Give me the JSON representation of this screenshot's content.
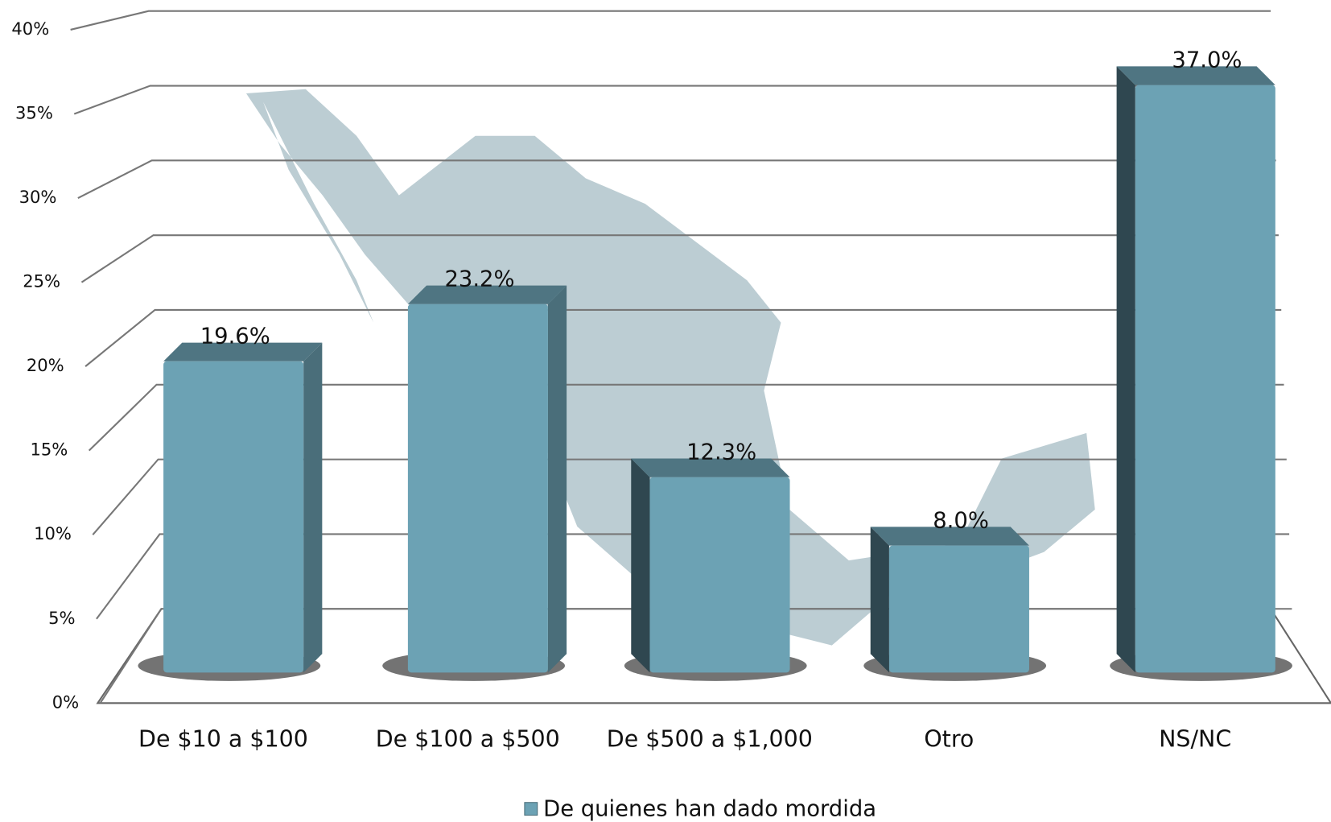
{
  "chart_data": {
    "type": "bar3d",
    "categories": [
      "De $10 a $100",
      "De $100 a $500",
      "De $500 a $1,000",
      "Otro",
      "NS/NC"
    ],
    "series": [
      {
        "name": "De quienes han dado mordida",
        "color": "#6ca2b4",
        "values": [
          19.6,
          23.2,
          12.3,
          8.0,
          37.0
        ],
        "value_labels": [
          "19.6%",
          "23.2%",
          "12.3%",
          "8.0%",
          "37.0%"
        ]
      }
    ],
    "ylim": [
      0,
      40
    ],
    "yticks": [
      {
        "value": 0,
        "label": "0%"
      },
      {
        "value": 5,
        "label": "5%"
      },
      {
        "value": 10,
        "label": "10%"
      },
      {
        "value": 15,
        "label": "15%"
      },
      {
        "value": 20,
        "label": "20%"
      },
      {
        "value": 25,
        "label": "25%"
      },
      {
        "value": 30,
        "label": "30%"
      },
      {
        "value": 35,
        "label": "35%"
      },
      {
        "value": 40,
        "label": "40%"
      }
    ],
    "grid": true,
    "legend": "bottom"
  }
}
